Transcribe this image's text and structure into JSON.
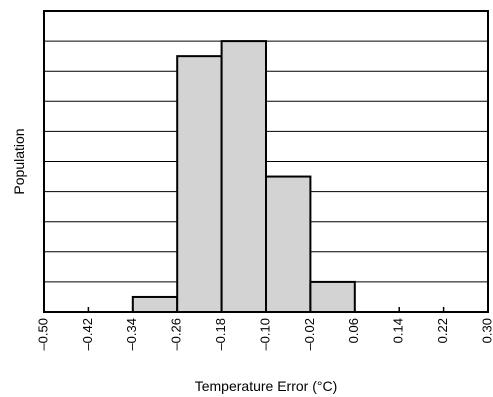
{
  "chart_data": {
    "type": "bar",
    "subtype": "histogram",
    "title": "",
    "xlabel": "Temperature Error (°C)",
    "ylabel": "Population",
    "xlim": [
      -0.5,
      0.3
    ],
    "ylim": [
      0,
      10
    ],
    "x_ticks": [
      "–0.50",
      "–0.42",
      "–0.34",
      "–0.26",
      "–0.18",
      "–0.10",
      "–0.02",
      "0.06",
      "0.14",
      "0.22",
      "0.30"
    ],
    "x_tick_values": [
      -0.5,
      -0.42,
      -0.34,
      -0.26,
      -0.18,
      -0.1,
      -0.02,
      0.06,
      0.14,
      0.22,
      0.3
    ],
    "bins": [
      {
        "x0": -0.34,
        "x1": -0.26,
        "value": 0.5
      },
      {
        "x0": -0.26,
        "x1": -0.18,
        "value": 8.5
      },
      {
        "x0": -0.18,
        "x1": -0.1,
        "value": 9.0
      },
      {
        "x0": -0.1,
        "x1": -0.02,
        "value": 4.5
      },
      {
        "x0": -0.02,
        "x1": 0.06,
        "value": 1.0
      }
    ],
    "grid": {
      "horizontal": true,
      "vertical": false
    },
    "bar_color": "#d3d3d3",
    "bar_edge_color": "#000000",
    "grid_color": "#000000"
  }
}
